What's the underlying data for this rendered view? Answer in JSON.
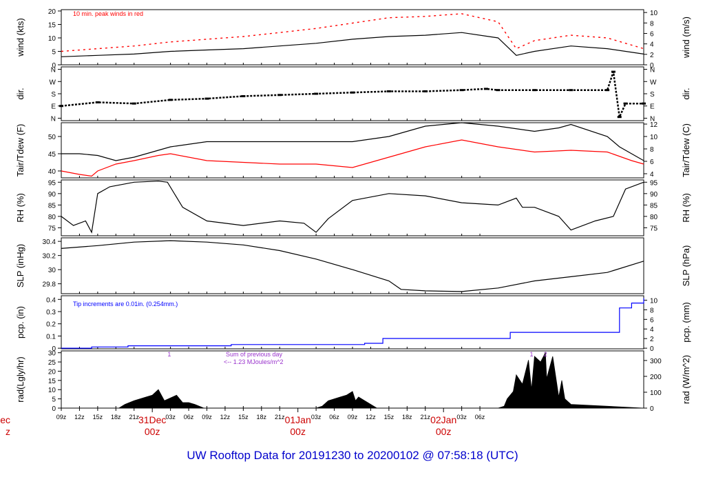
{
  "footer": {
    "title": "UW Rooftop Data for 20191230  to  20200102 @ 07:58:18  (UTC)"
  },
  "colors": {
    "primary": "#000000",
    "peak": "#ff0000",
    "dew": "#ff0000",
    "precip": "#0000ff",
    "title": "#0000cc",
    "day": "#cc0000",
    "annotation": "#9933cc"
  },
  "chart_data": [
    {
      "type": "line",
      "name": "wind",
      "ylabel": "wind (kts)",
      "y2label": "wind (m/s)",
      "ylim": [
        0,
        20.5
      ],
      "yticks": [
        0,
        5,
        10,
        15,
        20
      ],
      "y2ticks": [
        0,
        2,
        4,
        6,
        8,
        10
      ],
      "y2factor": 1.94384,
      "annotation": "10 min. peak winds in red",
      "series": [
        {
          "name": "wind",
          "color": "#000000",
          "x": [
            0,
            6,
            12,
            18,
            24,
            30,
            36,
            42,
            48,
            54,
            60,
            66,
            72,
            75,
            78,
            84,
            90,
            96
          ],
          "y": [
            3,
            3.5,
            4,
            5,
            5.5,
            6,
            7,
            8,
            9.5,
            10.5,
            11,
            12,
            10,
            3.5,
            5,
            7,
            6,
            4
          ]
        },
        {
          "name": "peak",
          "color": "#ff0000",
          "x": [
            0,
            6,
            12,
            18,
            24,
            30,
            36,
            42,
            48,
            54,
            60,
            66,
            72,
            75,
            78,
            84,
            90,
            96
          ],
          "y": [
            5,
            6,
            7,
            8.5,
            9.5,
            10.5,
            12,
            13.5,
            15.5,
            17.5,
            18,
            19,
            16,
            6,
            9,
            11,
            10,
            6
          ]
        }
      ]
    },
    {
      "type": "scatter",
      "name": "dir",
      "ylabel": "dir.",
      "y2label": "dir.",
      "ylim": [
        -0.2,
        4.2
      ],
      "ytick_values": [
        0,
        1,
        2,
        3,
        4
      ],
      "ytick_labels": [
        "N",
        "E",
        "S",
        "W",
        "N"
      ],
      "series": [
        {
          "name": "dir",
          "color": "#000000",
          "x": [
            0,
            6,
            12,
            18,
            24,
            30,
            36,
            42,
            48,
            54,
            60,
            66,
            70,
            72,
            78,
            84,
            90,
            91,
            92,
            93,
            96
          ],
          "y": [
            1,
            1.3,
            1.2,
            1.5,
            1.6,
            1.8,
            1.9,
            2,
            2.1,
            2.2,
            2.2,
            2.3,
            2.4,
            2.3,
            2.3,
            2.3,
            2.3,
            3.8,
            0.1,
            1.2,
            1.2
          ]
        }
      ]
    },
    {
      "type": "line",
      "name": "temp",
      "ylabel": "Tair/Tdew (F)",
      "y2label": "Tair/Tdew (C)",
      "ylim": [
        38,
        54
      ],
      "yticks": [
        40,
        45,
        50
      ],
      "y2ticks": [
        4,
        6,
        8,
        10,
        12
      ],
      "y2to_f": "c2f",
      "series": [
        {
          "name": "Tair",
          "color": "#000000",
          "x": [
            0,
            3,
            6,
            9,
            12,
            16,
            18,
            24,
            36,
            48,
            54,
            60,
            66,
            72,
            78,
            82,
            84,
            90,
            92,
            96
          ],
          "y": [
            45,
            45,
            44.5,
            43,
            44,
            46,
            47,
            48.5,
            48.5,
            48.5,
            50,
            53,
            54,
            53,
            51.5,
            52.5,
            53.5,
            50,
            47,
            43
          ]
        },
        {
          "name": "Tdew",
          "color": "#ff0000",
          "x": [
            0,
            3,
            5,
            6,
            9,
            12,
            16,
            18,
            24,
            36,
            42,
            48,
            54,
            60,
            66,
            72,
            78,
            84,
            90,
            94,
            96
          ],
          "y": [
            40,
            39,
            38.5,
            40,
            42,
            43,
            44.5,
            45,
            43,
            42,
            42,
            41,
            44,
            47,
            49,
            47,
            45.5,
            46,
            45.5,
            43,
            42
          ]
        }
      ]
    },
    {
      "type": "line",
      "name": "rh",
      "ylabel": "RH (%)",
      "y2label": "RH (%)",
      "ylim": [
        71.5,
        96
      ],
      "yticks": [
        75,
        80,
        85,
        90,
        95
      ],
      "y2ticks": [
        75,
        80,
        85,
        90,
        95
      ],
      "series": [
        {
          "name": "RH",
          "color": "#000000",
          "x": [
            0,
            2,
            4,
            5,
            6,
            8,
            12,
            16,
            17.5,
            20,
            24,
            30,
            36,
            40,
            42,
            44,
            48,
            54,
            60,
            66,
            72,
            75,
            76,
            78,
            82,
            84,
            88,
            91,
            93,
            96
          ],
          "y": [
            80,
            76,
            78,
            73,
            90,
            93,
            95,
            95.5,
            95,
            84,
            78,
            76,
            78,
            77,
            73,
            79,
            87,
            90,
            89,
            86,
            85,
            88,
            84,
            84,
            80,
            74,
            78,
            80,
            92,
            95
          ]
        }
      ]
    },
    {
      "type": "line",
      "name": "slp",
      "ylabel": "SLP (inHg)",
      "y2label": "SLP (hPa)",
      "ylim": [
        29.66,
        30.45
      ],
      "yticks": [
        29.8,
        30.0,
        30.2,
        30.4
      ],
      "y2ticks": [
        1005,
        1010,
        1015,
        1020,
        1025,
        1030
      ],
      "y2factor": 33.8639,
      "series": [
        {
          "name": "SLP",
          "color": "#000000",
          "x": [
            0,
            6,
            12,
            18,
            24,
            30,
            36,
            42,
            48,
            54,
            56,
            60,
            66,
            72,
            78,
            84,
            90,
            96
          ],
          "y": [
            30.3,
            30.34,
            30.39,
            30.41,
            30.39,
            30.35,
            30.27,
            30.15,
            30.0,
            29.84,
            29.72,
            29.7,
            29.69,
            29.74,
            29.84,
            29.9,
            29.96,
            30.12
          ]
        }
      ]
    },
    {
      "type": "line",
      "name": "pcp",
      "ylabel": "pcp. (in)",
      "y2label": "pcp. (mm)",
      "ylim": [
        -0.005,
        0.43
      ],
      "yticks": [
        0.0,
        0.1,
        0.2,
        0.3,
        0.4
      ],
      "y2ticks": [
        0,
        2,
        4,
        6,
        8,
        10
      ],
      "y2factor": 0.03937,
      "annotation": "Tip increments are 0.01in. (0.254mm.)",
      "series": [
        {
          "name": "pcp",
          "color": "#0000ff",
          "step": true,
          "x": [
            0,
            5,
            11,
            28,
            50,
            53,
            74,
            91,
            92,
            94,
            96
          ],
          "y": [
            0.0,
            0.01,
            0.02,
            0.03,
            0.04,
            0.08,
            0.13,
            0.13,
            0.33,
            0.37,
            0.41
          ]
        }
      ]
    },
    {
      "type": "area",
      "name": "rad",
      "ylabel": "rad(Lgly/hr)",
      "y2label": "rad (W/m^2)",
      "ylim": [
        0,
        31
      ],
      "yticks": [
        0,
        5,
        10,
        15,
        20,
        25,
        30
      ],
      "y2ticks": [
        0,
        100,
        200,
        300
      ],
      "y2factor": 0.086,
      "annotation": "Sum of previous day",
      "annotation2": "<-- 1.23 MJoules/m^2",
      "markers": [
        {
          "x": 17.8,
          "label": "1"
        },
        {
          "x": 77.5,
          "label": "1"
        },
        {
          "x": 79.8,
          "label": "2"
        }
      ],
      "series": [
        {
          "name": "rad",
          "color": "#000000",
          "x": [
            0,
            9.5,
            10.5,
            12,
            14,
            15,
            16,
            17,
            19,
            20,
            21,
            22,
            23.5,
            24,
            42,
            43,
            44,
            46,
            47,
            48,
            48.5,
            49,
            51,
            52,
            72,
            73,
            73.5,
            74,
            74.5,
            75,
            76,
            77,
            77.5,
            78,
            79,
            79.8,
            80,
            81,
            82,
            82.5,
            83,
            84,
            96
          ],
          "y": [
            0,
            0,
            2,
            4,
            6,
            7,
            10,
            4,
            7,
            3,
            3,
            2,
            0,
            0,
            0,
            1,
            4,
            6,
            7,
            9,
            4,
            6,
            2,
            0,
            0,
            1,
            5,
            7,
            9,
            18,
            13,
            26,
            10,
            28,
            25,
            30,
            16,
            28,
            6,
            15,
            5,
            2,
            0
          ]
        }
      ]
    }
  ],
  "x_axis": {
    "range": [
      0,
      96
    ],
    "ticks": [
      {
        "x": 0,
        "label": "09z"
      },
      {
        "x": 3,
        "label": "12z"
      },
      {
        "x": 6,
        "label": "15z"
      },
      {
        "x": 9,
        "label": "18z"
      },
      {
        "x": 12,
        "label": "21z"
      },
      {
        "x": 18,
        "label": "03z"
      },
      {
        "x": 21,
        "label": "06z"
      },
      {
        "x": 24,
        "label": "09z"
      },
      {
        "x": 27,
        "label": "12z"
      },
      {
        "x": 30,
        "label": "15z"
      },
      {
        "x": 33,
        "label": "18z"
      },
      {
        "x": 36,
        "label": "21z"
      },
      {
        "x": 42,
        "label": "03z"
      },
      {
        "x": 45,
        "label": "06z"
      },
      {
        "x": 48,
        "label": "09z"
      },
      {
        "x": 51,
        "label": "12z"
      },
      {
        "x": 54,
        "label": "15z"
      },
      {
        "x": 57,
        "label": "18z"
      },
      {
        "x": 60,
        "label": "21z"
      },
      {
        "x": 66,
        "label": "03z"
      },
      {
        "x": 69,
        "label": "06z"
      }
    ],
    "day_labels": [
      {
        "x": 15,
        "line1": "31Dec",
        "line2": "00z"
      },
      {
        "x": 39,
        "line1": "01Jan",
        "line2": "00z"
      },
      {
        "x": 63,
        "line1": "02Jan",
        "line2": "00z"
      },
      {
        "x": -8.5,
        "line1": "ec",
        "line2": "z"
      }
    ]
  }
}
